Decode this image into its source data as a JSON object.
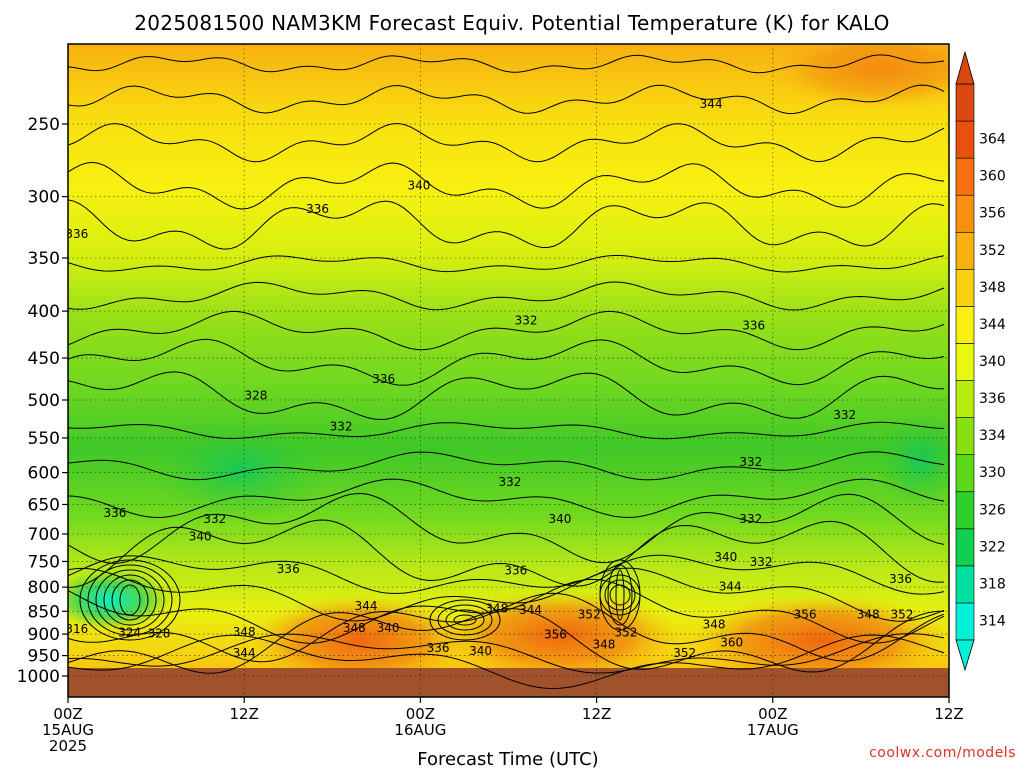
{
  "title": "2025081500 NAM3KM Forecast Equiv. Potential Temperature (K) for KALO",
  "xlabel": "Forecast Time (UTC)",
  "credit": "coolwx.com/models",
  "chart_data": {
    "type": "contour-cross-section",
    "title": "2025081500 NAM3KM Forecast Equiv. Potential Temperature (K) for KALO",
    "xlabel": "Forecast Time (UTC)",
    "ylabel": "",
    "x_ticks": [
      {
        "hour": 0,
        "lines": [
          "00Z",
          "15AUG",
          "2025"
        ]
      },
      {
        "hour": 12,
        "lines": [
          "12Z"
        ]
      },
      {
        "hour": 24,
        "lines": [
          "00Z",
          "16AUG"
        ]
      },
      {
        "hour": 36,
        "lines": [
          "12Z"
        ]
      },
      {
        "hour": 48,
        "lines": [
          "00Z",
          "17AUG"
        ]
      },
      {
        "hour": 60,
        "lines": [
          "12Z"
        ]
      }
    ],
    "xlim": [
      0,
      60
    ],
    "y_scale": "log-pressure",
    "ylim": [
      1025,
      200
    ],
    "y_ticks": [
      250,
      300,
      350,
      400,
      450,
      500,
      550,
      600,
      650,
      700,
      750,
      800,
      850,
      900,
      950,
      1000
    ],
    "grid": "dotted",
    "colorbar": {
      "units": "K",
      "levels": [
        314,
        318,
        322,
        326,
        330,
        334,
        336,
        340,
        344,
        348,
        352,
        356,
        360,
        364
      ],
      "colors": [
        "#00f0d8",
        "#00e0a0",
        "#10d050",
        "#2ed02a",
        "#5cd818",
        "#88e010",
        "#b8ec10",
        "#e8f810",
        "#f8f010",
        "#f8d010",
        "#f8b010",
        "#f89010",
        "#f87010",
        "#e85010",
        "#d84810"
      ]
    },
    "contour_labels": [
      {
        "hour": 0.6,
        "p": 330,
        "value": "336"
      },
      {
        "hour": 17,
        "p": 310,
        "value": "336"
      },
      {
        "hour": 23.9,
        "p": 292,
        "value": "340"
      },
      {
        "hour": 43.8,
        "p": 238,
        "value": "344"
      },
      {
        "hour": 31.2,
        "p": 410,
        "value": "332"
      },
      {
        "hour": 46.7,
        "p": 415,
        "value": "336"
      },
      {
        "hour": 21.5,
        "p": 475,
        "value": "336"
      },
      {
        "hour": 12.8,
        "p": 495,
        "value": "328"
      },
      {
        "hour": 18.6,
        "p": 535,
        "value": "332"
      },
      {
        "hour": 52.9,
        "p": 520,
        "value": "332"
      },
      {
        "hour": 46.5,
        "p": 585,
        "value": "332"
      },
      {
        "hour": 30.1,
        "p": 615,
        "value": "332"
      },
      {
        "hour": 3.2,
        "p": 665,
        "value": "336"
      },
      {
        "hour": 10.0,
        "p": 675,
        "value": "332"
      },
      {
        "hour": 33.5,
        "p": 675,
        "value": "340"
      },
      {
        "hour": 46.5,
        "p": 675,
        "value": "332"
      },
      {
        "hour": 9.0,
        "p": 705,
        "value": "340"
      },
      {
        "hour": 15.0,
        "p": 765,
        "value": "336"
      },
      {
        "hour": 30.5,
        "p": 768,
        "value": "336"
      },
      {
        "hour": 44.8,
        "p": 743,
        "value": "340"
      },
      {
        "hour": 47.2,
        "p": 752,
        "value": "332"
      },
      {
        "hour": 45.1,
        "p": 800,
        "value": "344"
      },
      {
        "hour": 56.7,
        "p": 785,
        "value": "336"
      },
      {
        "hour": 20.3,
        "p": 840,
        "value": "344"
      },
      {
        "hour": 29.2,
        "p": 845,
        "value": "348"
      },
      {
        "hour": 31.5,
        "p": 848,
        "value": "344"
      },
      {
        "hour": 35.5,
        "p": 858,
        "value": "352"
      },
      {
        "hour": 50.2,
        "p": 858,
        "value": "356"
      },
      {
        "hour": 54.5,
        "p": 858,
        "value": "348"
      },
      {
        "hour": 56.8,
        "p": 858,
        "value": "352"
      },
      {
        "hour": 44.0,
        "p": 880,
        "value": "348"
      },
      {
        "hour": 19.5,
        "p": 888,
        "value": "348"
      },
      {
        "hour": 21.8,
        "p": 888,
        "value": "340"
      },
      {
        "hour": 12.0,
        "p": 897,
        "value": "348"
      },
      {
        "hour": 0.6,
        "p": 890,
        "value": "316"
      },
      {
        "hour": 4.2,
        "p": 898,
        "value": "324"
      },
      {
        "hour": 6.2,
        "p": 900,
        "value": "328"
      },
      {
        "hour": 38.0,
        "p": 898,
        "value": "352"
      },
      {
        "hour": 33.2,
        "p": 902,
        "value": "356"
      },
      {
        "hour": 45.2,
        "p": 920,
        "value": "360"
      },
      {
        "hour": 36.5,
        "p": 925,
        "value": "348"
      },
      {
        "hour": 42.0,
        "p": 945,
        "value": "352"
      },
      {
        "hour": 12.0,
        "p": 945,
        "value": "344"
      },
      {
        "hour": 25.2,
        "p": 933,
        "value": "336"
      },
      {
        "hour": 28.1,
        "p": 940,
        "value": "340"
      }
    ]
  }
}
